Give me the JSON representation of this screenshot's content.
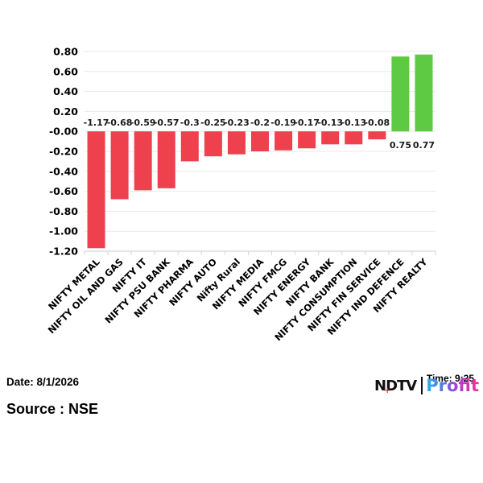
{
  "chart_data": {
    "type": "bar",
    "title": "",
    "xlabel": "",
    "ylabel": "",
    "categories": [
      "NIFTY METAL",
      "NIFTY OIL AND GAS",
      "NIFTY IT",
      "NIFTY PSU BANK",
      "NIFTY PHARMA",
      "NIFTY AUTO",
      "Nifty Rural",
      "NIFTY MEDIA",
      "NIFTY FMCG",
      "NIFTY ENERGY",
      "NIFTY BANK",
      "NIFTY CONSUMPTION",
      "NIFTY FIN SERVICE",
      "NIFTY IND DEFENCE",
      "NIFTY REALTY"
    ],
    "values": [
      -1.17,
      -0.68,
      -0.59,
      -0.57,
      -0.3,
      -0.25,
      -0.23,
      -0.2,
      -0.19,
      -0.17,
      -0.13,
      -0.13,
      -0.08,
      0.75,
      0.77
    ],
    "value_labels": [
      "-1.17",
      "-0.68",
      "-0.59",
      "-0.57",
      "-0.3",
      "-0.25",
      "-0.23",
      "-0.2",
      "-0.19",
      "-0.17",
      "-0.13",
      "-0.13",
      "-0.08",
      "0.75",
      "0.77"
    ],
    "ylim": [
      -1.2,
      0.8
    ],
    "ytick_labels": [
      "0.80",
      "0.60",
      "0.40",
      "0.20",
      "-0.00",
      "-0.20",
      "-0.40",
      "-0.60",
      "-0.80",
      "-1.00",
      "-1.20"
    ],
    "grid": true,
    "legend": "none",
    "colors": {
      "positive": "#5ec943",
      "negative": "#ee404d",
      "grid": "#e8e8e8",
      "axis": "#d6d6d6",
      "label": "#1a1a1a"
    }
  },
  "footer": {
    "date_label": "Date: 8/1/2026",
    "source_label": "Source : NSE",
    "time_label": "Time: 9:25",
    "logo": {
      "ndtv": "NDTV",
      "plus": "+",
      "profit": "Profit"
    }
  }
}
